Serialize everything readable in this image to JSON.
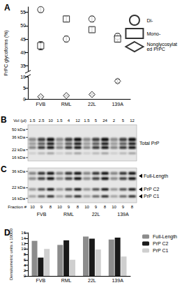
{
  "chart_data": [
    {
      "type": "scatter",
      "title": "A",
      "ylabel": "PrPC glycoforms (%)",
      "categories": [
        "FVB",
        "RML",
        "22L",
        "139A"
      ],
      "ylim": [
        33,
        57
      ],
      "yticks": [
        35,
        40,
        45,
        50,
        55
      ],
      "y2lim": [
        0,
        10
      ],
      "y2ticks": [
        0,
        5,
        10
      ],
      "grid": false,
      "legend": "right",
      "series": [
        {
          "name": "Di-",
          "color": "#000000",
          "marker": "circle",
          "values": [
            56,
            45,
            52.5,
            46
          ],
          "errors": [
            1,
            1,
            1,
            1
          ]
        },
        {
          "name": "Mono-",
          "color": "#000000",
          "marker": "square",
          "values": [
            42.5,
            52.5,
            48.5,
            45
          ],
          "errors": [
            1.5,
            1,
            1,
            1
          ]
        },
        {
          "name": "Nonglycosylated PrPC",
          "color": "#000000",
          "marker": "diamond",
          "values": [
            1,
            1.5,
            2,
            8
          ],
          "errors": [
            0.3,
            0.3,
            0.3,
            0.8
          ],
          "axis": "y2"
        }
      ]
    },
    {
      "type": "bar",
      "title": "D",
      "ylabel": "Densitometric units x 10000",
      "categories": [
        "FVB",
        "RML",
        "22L",
        "139A"
      ],
      "ylim": [
        0,
        16
      ],
      "yticks": [
        0,
        2,
        4,
        6,
        8,
        10,
        12,
        14,
        16
      ],
      "grid": false,
      "legend": "right",
      "series": [
        {
          "name": "Full-Length",
          "color": "#8c8c8c",
          "values": [
            13,
            11.5,
            14.6,
            13.5
          ]
        },
        {
          "name": "PrP C2",
          "color": "#1a1a1a",
          "values": [
            6.8,
            13.2,
            13.8,
            14.2
          ]
        },
        {
          "name": "PrP C1",
          "color": "#cfcfcf",
          "values": [
            10,
            6,
            9.8,
            7.2
          ]
        }
      ]
    }
  ],
  "blots": [
    {
      "title": "B",
      "row_label": "Vol (µl)",
      "lanes": [
        1.5,
        2.5,
        10,
        1.5,
        4,
        12,
        1.5,
        5,
        24,
        2,
        5,
        12
      ],
      "markers": [
        {
          "value": 50,
          "label": "50 kDa"
        },
        {
          "value": 36,
          "label": "36 kDa"
        },
        {
          "value": 22,
          "label": "22 kDa"
        },
        {
          "value": 16,
          "label": "16 kDa"
        }
      ],
      "labels": [
        "Total PrP"
      ]
    },
    {
      "title": "C",
      "row_label": "Fraction #",
      "lanes": [
        10,
        9,
        8,
        10,
        9,
        8,
        10,
        9,
        8,
        10,
        9,
        8
      ],
      "groups": [
        "FVB",
        "RML",
        "22L",
        "139A"
      ],
      "markers": [
        {
          "value": 36,
          "label": "36 kDa"
        },
        {
          "value": 22,
          "label": "22 kDa"
        },
        {
          "value": 16,
          "label": "16 kDa"
        }
      ],
      "labels": [
        "Full-Length",
        "PrP C2",
        "PrP C1"
      ]
    }
  ]
}
